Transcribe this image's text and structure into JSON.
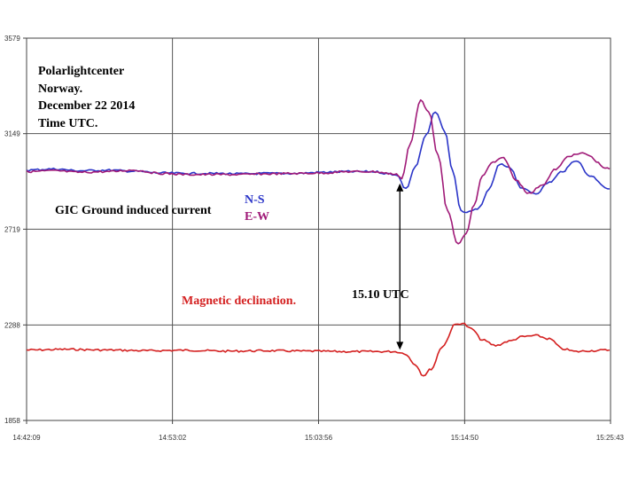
{
  "chart_data": {
    "type": "line",
    "y_ticks": [
      "3579",
      "3149",
      "2719",
      "2288",
      "1858"
    ],
    "y_tick_values": [
      3579,
      3149,
      2719,
      2288,
      1858
    ],
    "ylim": [
      1858,
      3579
    ],
    "x_ticks": [
      "14:42:09",
      "14:53:02",
      "15:03:56",
      "15:14:50",
      "15:25:43"
    ],
    "x_tick_minutes": [
      0,
      10.883,
      21.783,
      32.683,
      43.567
    ],
    "xlim_minutes": [
      0,
      43.567
    ],
    "grid": true,
    "annotations": {
      "title_lines": [
        "Polarlightcenter",
        "Norway.",
        "December 22 2014",
        "Time UTC."
      ],
      "gic_label": "GIC Ground induced current",
      "mag_label": "Magnetic declination.",
      "event_label": "15.10 UTC",
      "event_minute": 27.85
    },
    "legend": [
      "N-S",
      "E-W"
    ],
    "colors": {
      "ns": "#2b35c8",
      "ew": "#a01a78",
      "mag": "#d42020",
      "grid": "#555555"
    },
    "series": [
      {
        "name": "N-S",
        "color": "#2b35c8",
        "x": [
          0,
          2,
          4,
          6,
          8,
          10,
          12,
          14,
          16,
          18,
          20,
          22,
          24,
          26,
          27,
          27.6,
          28.3,
          29.0,
          29.8,
          30.5,
          31.2,
          31.8,
          32.4,
          33.0,
          33.8,
          34.5,
          35.3,
          36.0,
          37.0,
          38.0,
          39.0,
          40.0,
          41.0,
          42.0,
          43.5
        ],
        "y": [
          2985,
          2990,
          2982,
          2985,
          2980,
          2972,
          2970,
          2970,
          2968,
          2970,
          2970,
          2975,
          2978,
          2978,
          2968,
          2965,
          2900,
          3000,
          3140,
          3250,
          3160,
          2980,
          2800,
          2795,
          2815,
          2900,
          3010,
          3000,
          2900,
          2880,
          2930,
          2980,
          3030,
          2960,
          2900
        ]
      },
      {
        "name": "E-W",
        "color": "#a01a78",
        "x": [
          0,
          2,
          4,
          6,
          8,
          10,
          12,
          14,
          16,
          18,
          20,
          22,
          24,
          26,
          27,
          27.6,
          28.0,
          28.6,
          29.4,
          30.0,
          30.7,
          31.4,
          32.2,
          32.8,
          33.4,
          34.0,
          34.8,
          35.6,
          36.5,
          37.5,
          38.5,
          39.5,
          40.5,
          41.5,
          43.5
        ],
        "y": [
          2978,
          2982,
          2975,
          2978,
          2985,
          2970,
          2965,
          2965,
          2965,
          2968,
          2970,
          2972,
          2978,
          2978,
          2970,
          2965,
          2950,
          3100,
          3300,
          3250,
          3050,
          2800,
          2650,
          2700,
          2830,
          2960,
          3020,
          3040,
          2940,
          2880,
          2920,
          2990,
          3050,
          3060,
          2990
        ]
      },
      {
        "name": "Magnetic declination",
        "color": "#d42020",
        "x": [
          0,
          3,
          6,
          9,
          12,
          15,
          18,
          21,
          24,
          26,
          27.5,
          28.2,
          29.0,
          29.6,
          30.2,
          31.0,
          32.0,
          32.5,
          33.2,
          34.0,
          35.0,
          36.0,
          37.0,
          38.0,
          39.0,
          40.0,
          41.0,
          42.0,
          43.5
        ],
        "y": [
          2175,
          2178,
          2175,
          2172,
          2174,
          2170,
          2172,
          2170,
          2168,
          2168,
          2168,
          2160,
          2110,
          2060,
          2090,
          2190,
          2290,
          2296,
          2270,
          2220,
          2195,
          2215,
          2235,
          2240,
          2225,
          2180,
          2168,
          2172,
          2175
        ]
      }
    ]
  }
}
